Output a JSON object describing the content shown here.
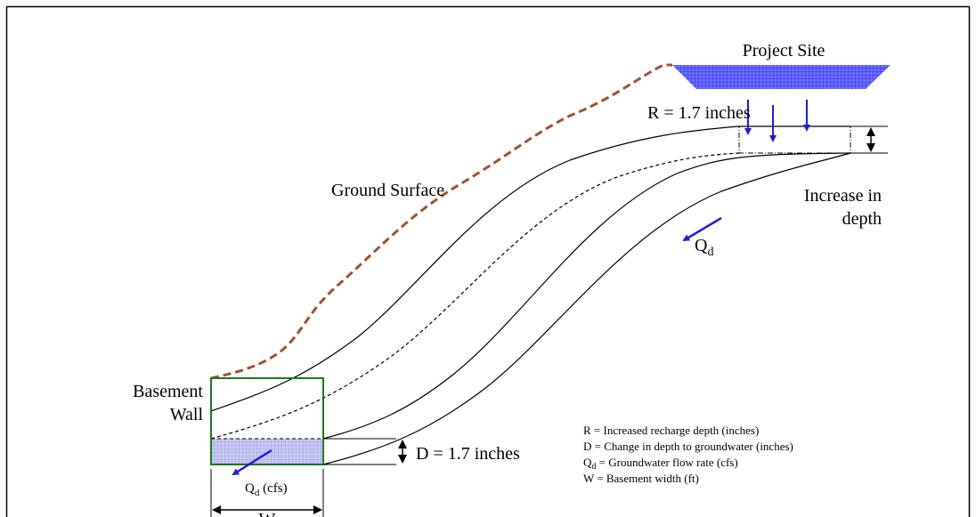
{
  "project_site": "Project Site",
  "recharge_label": "R = 1.7 inches",
  "ground_surface": "Ground Surface",
  "increase_label": [
    "Increase in",
    "depth"
  ],
  "flow_label": {
    "main": "Q",
    "sub": "d"
  },
  "basement_label": [
    "Basement",
    "Wall"
  ],
  "depth_label": "D = 1.7 inches",
  "basement_flow_label": {
    "main": "Q",
    "sub": "d",
    "unit": " (cfs)"
  },
  "width_label": "W",
  "legend": [
    {
      "main": "R = Increased recharge depth (inches)"
    },
    {
      "main": "D = Change in depth to groundwater (inches)"
    },
    {
      "main": "Q",
      "sub": "d",
      "rest": " = Groundwater flow rate (cfs)"
    },
    {
      "main": "W = Basement width (ft)"
    }
  ]
}
